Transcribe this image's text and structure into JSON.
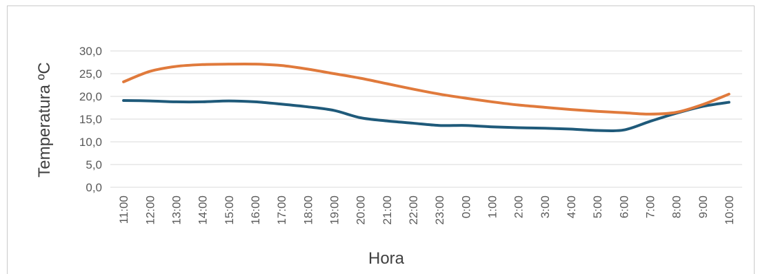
{
  "chart_data": {
    "type": "line",
    "title": "",
    "xlabel": "Hora",
    "ylabel": "Temperatura ºC",
    "categories": [
      "11:00",
      "12:00",
      "13:00",
      "14:00",
      "15:00",
      "16:00",
      "17:00",
      "18:00",
      "19:00",
      "20:00",
      "21:00",
      "22:00",
      "23:00",
      "0:00",
      "1:00",
      "2:00",
      "3:00",
      "4:00",
      "5:00",
      "6:00",
      "7:00",
      "8:00",
      "9:00",
      "10:00"
    ],
    "y_tick_labels": [
      "0,0",
      "5,0",
      "10,0",
      "15,0",
      "20,0",
      "25,0",
      "30,0"
    ],
    "ylim": [
      0,
      30
    ],
    "grid": true,
    "legend": "none",
    "series": [
      {
        "color": "#1f5a7a",
        "values": [
          19.1,
          19.0,
          18.8,
          18.8,
          19.0,
          18.8,
          18.3,
          17.7,
          16.9,
          15.3,
          14.6,
          14.1,
          13.6,
          13.6,
          13.3,
          13.1,
          13.0,
          12.8,
          12.5,
          12.6,
          14.5,
          16.3,
          17.8,
          18.7
        ]
      },
      {
        "color": "#e07a3c",
        "values": [
          23.2,
          25.5,
          26.6,
          27.0,
          27.1,
          27.1,
          26.8,
          26.0,
          25.0,
          24.0,
          22.8,
          21.6,
          20.5,
          19.6,
          18.8,
          18.1,
          17.6,
          17.1,
          16.7,
          16.4,
          16.1,
          16.5,
          18.2,
          20.5
        ]
      }
    ]
  }
}
